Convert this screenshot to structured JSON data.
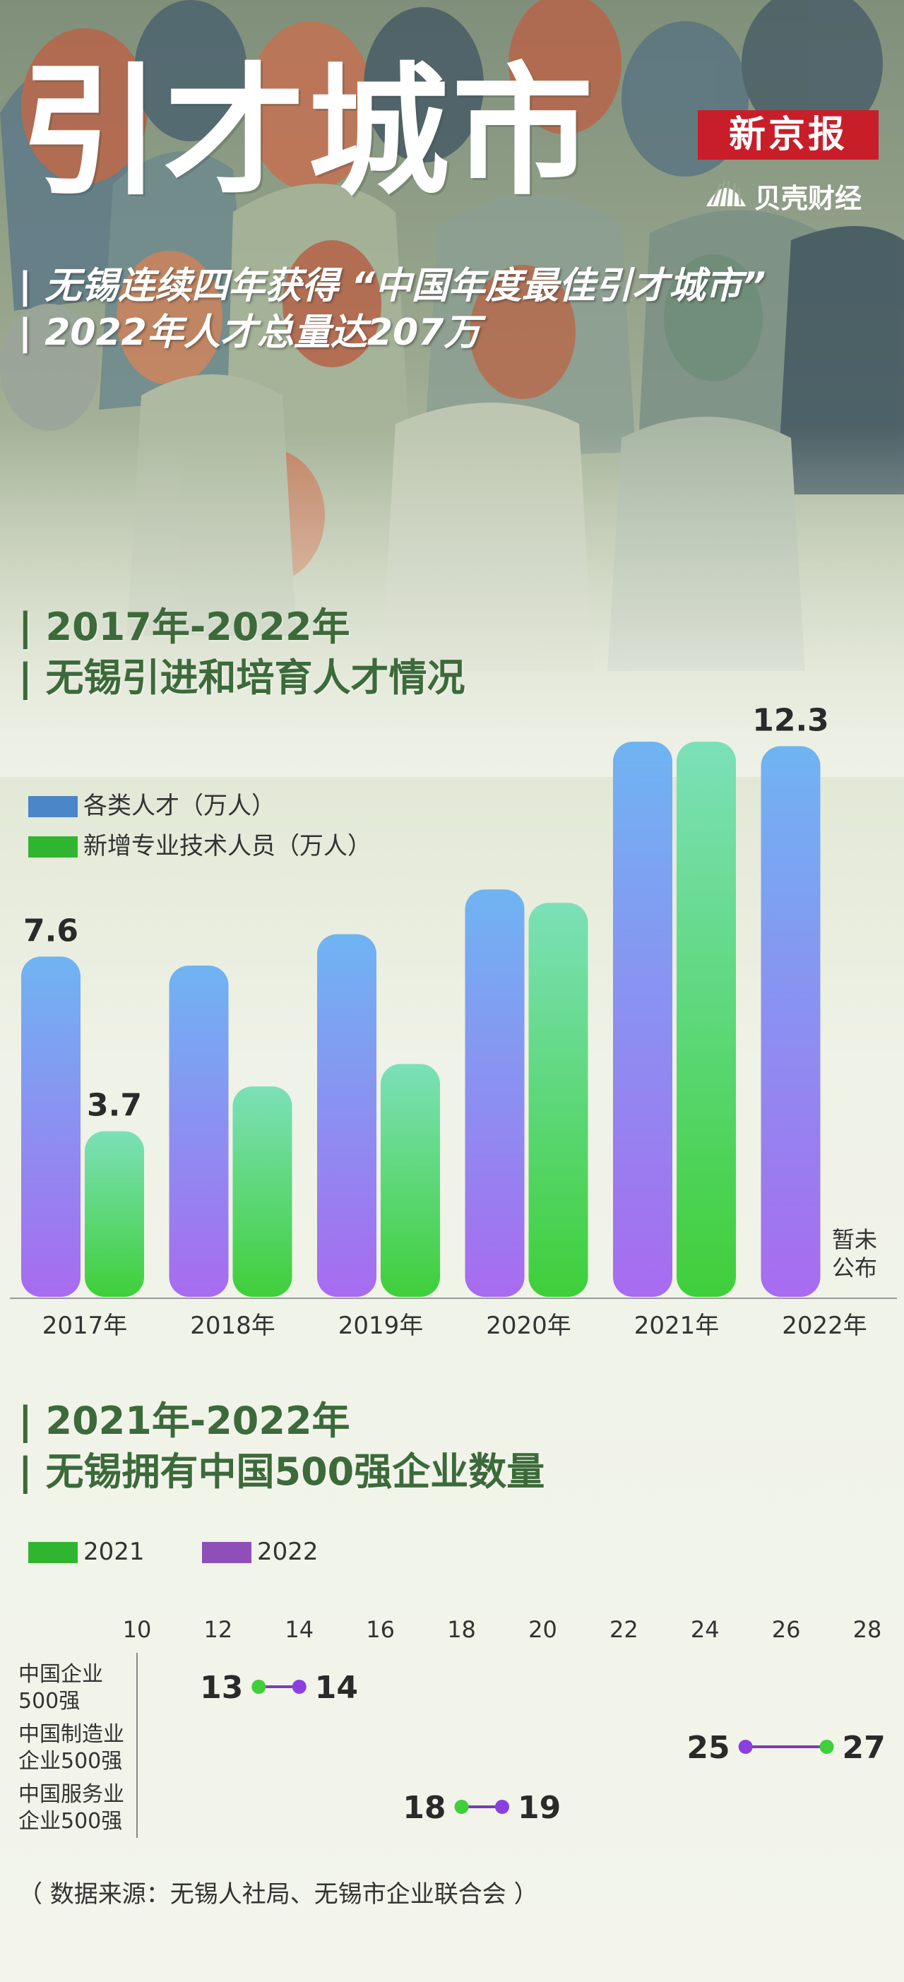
{
  "header": {
    "title": "引才城市",
    "subtitle_line1": "| 无锡连续四年获得 “中国年度最佳引才城市”",
    "subtitle_line2": "| 2022年人才总量达207万",
    "logo_main": "新京报",
    "logo_sub": "贝壳财经"
  },
  "section1": {
    "heading_line1": "| 2017年-2022年",
    "heading_line2": "| 无锡引进和培育人才情况",
    "not_published_line1": "暂未",
    "not_published_line2": "公布"
  },
  "section2": {
    "heading_line1": "| 2021年-2022年",
    "heading_line2": "| 无锡拥有中国500强企业数量"
  },
  "source": "（ 数据来源：无锡人社局、无锡市企业联合会 ）",
  "colors": {
    "bar1_top": "#6fb4f2",
    "bar1_bottom": "#a86bf0",
    "bar2_top": "#7ce0b8",
    "bar2_bottom": "#3fcf3a",
    "dot2021": "#3fcf3a",
    "dot2022": "#8b3fe0",
    "legend1": "#4a86c8",
    "legend2": "#2fb52f",
    "legend2022": "#8e4fb8"
  },
  "chart_data": [
    {
      "type": "bar",
      "categories": [
        "2017年",
        "2018年",
        "2019年",
        "2020年",
        "2021年",
        "2022年"
      ],
      "series": [
        {
          "name": "各类人才（万人）",
          "values": [
            7.6,
            7.4,
            8.1,
            9.1,
            12.4,
            12.3
          ],
          "labels": [
            "7.6",
            "",
            "",
            "",
            "",
            "12.3"
          ]
        },
        {
          "name": "新增专业技术人员（万人）",
          "values": [
            3.7,
            4.7,
            5.2,
            8.8,
            12.4,
            null
          ],
          "labels": [
            "3.7",
            "",
            "",
            "",
            "",
            ""
          ]
        }
      ],
      "ylim": [
        0,
        13
      ]
    },
    {
      "type": "dumbbell",
      "x_ticks": [
        10,
        12,
        14,
        16,
        18,
        20,
        22,
        24,
        26,
        28
      ],
      "xlim": [
        10,
        28
      ],
      "categories": [
        "中国企业\n500强",
        "中国制造业\n企业500强",
        "中国服务业\n企业500强"
      ],
      "series": [
        {
          "name": "2021",
          "values": [
            13,
            27,
            18
          ]
        },
        {
          "name": "2022",
          "values": [
            14,
            25,
            19
          ]
        }
      ]
    }
  ]
}
